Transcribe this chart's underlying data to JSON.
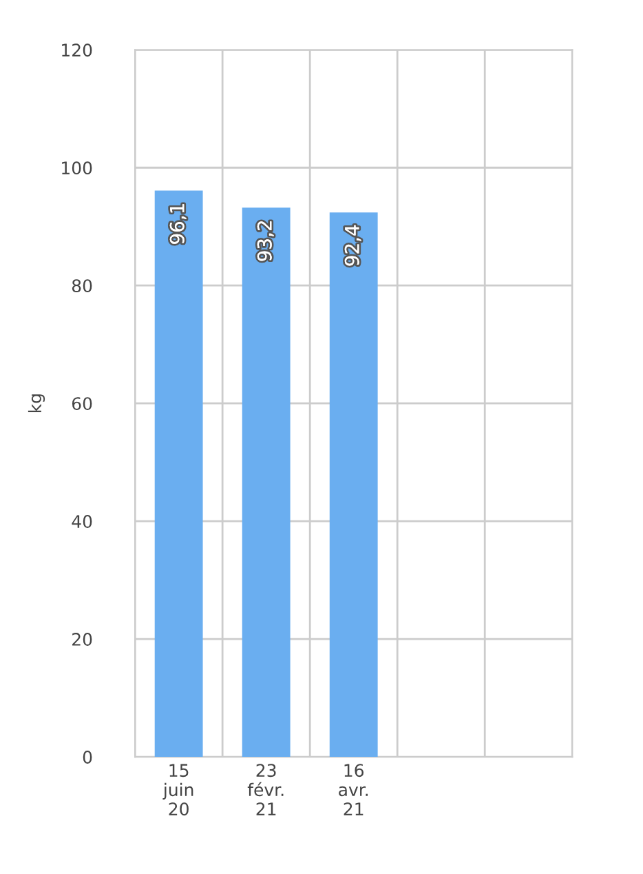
{
  "chart_data": {
    "type": "bar",
    "ylabel": "kg",
    "categories": [
      "15\njuin\n20",
      "23\nfévr.\n21",
      "16\navr.\n21",
      null,
      null
    ],
    "values": [
      96.1,
      93.2,
      92.4,
      null,
      null
    ],
    "value_labels": [
      "96,1",
      "93,2",
      "92,4",
      null,
      null
    ],
    "color": "#6aaef0",
    "ylim": [
      0,
      120
    ],
    "yticks": [
      0,
      20,
      40,
      60,
      80,
      100,
      120
    ],
    "grid": true
  }
}
